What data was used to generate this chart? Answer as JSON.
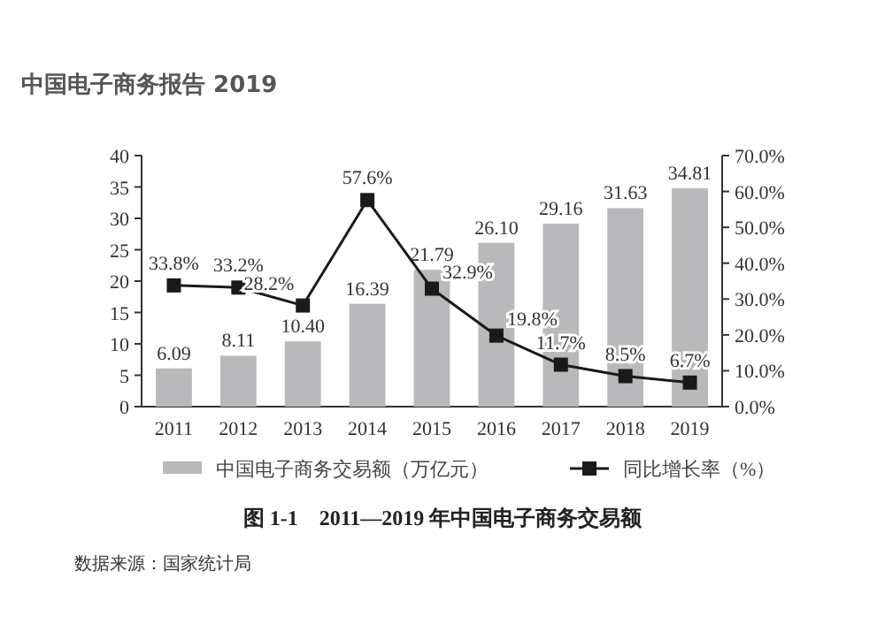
{
  "chart_data": {
    "type": "bar",
    "title": "图 1-1　2011—2019 年中国电子商务交易额",
    "subtitle": "中国电子商务报告 2019",
    "categories": [
      "2011",
      "2012",
      "2013",
      "2014",
      "2015",
      "2016",
      "2017",
      "2018",
      "2019"
    ],
    "series": [
      {
        "name": "中国电子商务交易额（万亿元）",
        "color": "#b9b9bb",
        "values": [
          6.09,
          8.11,
          10.4,
          16.39,
          21.79,
          26.1,
          29.16,
          31.63,
          34.81
        ],
        "value_labels": [
          "6.09",
          "8.11",
          "10.40",
          "16.39",
          "21.79",
          "26.10",
          "29.16",
          "31.63",
          "34.81"
        ]
      },
      {
        "name": "同比增长率（%）",
        "type": "line",
        "axis": "y2",
        "color": "#1a1a1a",
        "marker": "square",
        "values": [
          33.8,
          33.2,
          28.2,
          57.6,
          32.9,
          19.8,
          11.7,
          8.5,
          6.7
        ],
        "value_labels": [
          "33.8%",
          "33.2%",
          "28.2%",
          "57.6%",
          "32.9%",
          "19.8%",
          "11.7%",
          "8.5%",
          "6.7%"
        ]
      }
    ],
    "ylim": [
      0,
      40
    ],
    "yticks": [
      0,
      5,
      10,
      15,
      20,
      25,
      30,
      35,
      40
    ],
    "y2lim": [
      0,
      70
    ],
    "y2ticks": [
      {
        "value": 0,
        "label": "0.0%"
      },
      {
        "value": 10,
        "label": "10.0%"
      },
      {
        "value": 20,
        "label": "20.0%"
      },
      {
        "value": 30,
        "label": "30.0%"
      },
      {
        "value": 40,
        "label": "40.0%"
      },
      {
        "value": 50,
        "label": "50.0%"
      },
      {
        "value": 60,
        "label": "60.0%"
      },
      {
        "value": 70,
        "label": "70.0%"
      }
    ],
    "legend": "bottom",
    "grid": false,
    "annotations": [
      "数据来源：国家统计局"
    ]
  }
}
